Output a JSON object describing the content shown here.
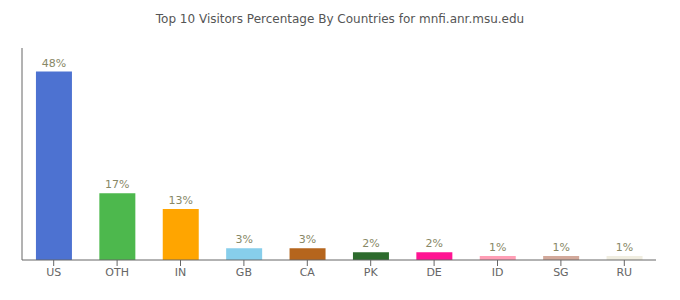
{
  "chart_data": {
    "type": "bar",
    "title": "Top 10 Visitors Percentage By Countries for mnfi.anr.msu.edu",
    "categories": [
      "US",
      "OTH",
      "IN",
      "GB",
      "CA",
      "PK",
      "DE",
      "ID",
      "SG",
      "RU"
    ],
    "values": [
      48,
      17,
      13,
      3,
      3,
      2,
      2,
      1,
      1,
      1
    ],
    "value_labels": [
      "48%",
      "17%",
      "13%",
      "3%",
      "3%",
      "2%",
      "2%",
      "1%",
      "1%",
      "1%"
    ],
    "colors": [
      "#4d72d1",
      "#4db84d",
      "#ffa500",
      "#87ceeb",
      "#b5651d",
      "#2d6b2d",
      "#ff1493",
      "#ff9eb5",
      "#d2a89a",
      "#f0ede0"
    ],
    "ylim": [
      0,
      54
    ],
    "data_labels": true,
    "tick_labels": "x",
    "grid": false
  }
}
